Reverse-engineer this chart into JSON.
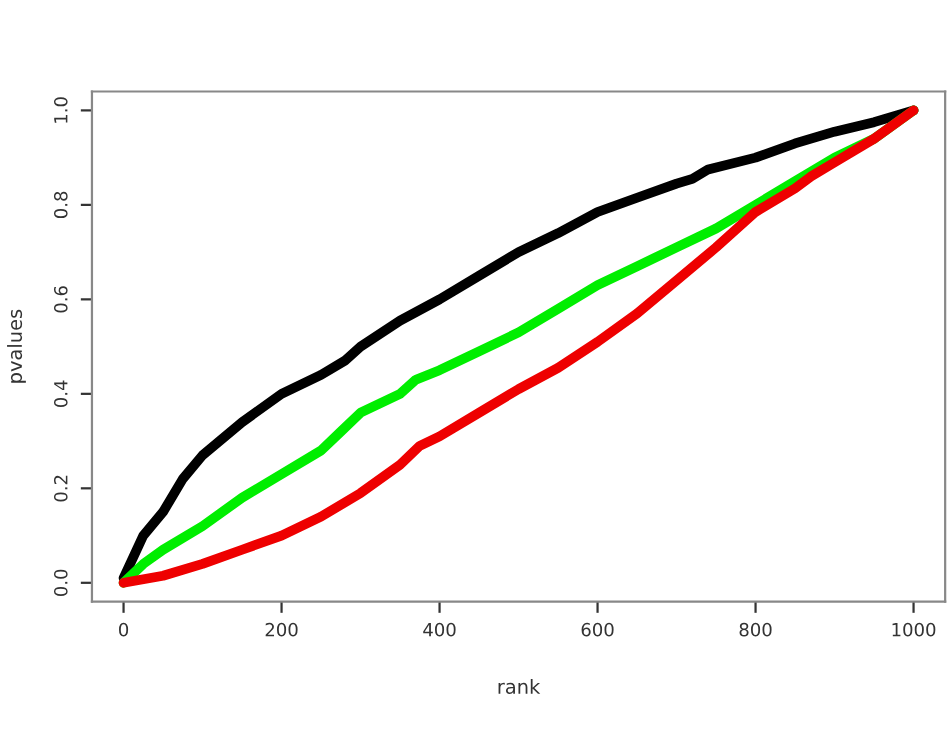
{
  "chart_data": {
    "type": "line",
    "xlabel": "rank",
    "ylabel": "pvalues",
    "xlim": [
      -40,
      1040
    ],
    "ylim": [
      -0.04,
      1.04
    ],
    "xticks": [
      0,
      200,
      400,
      600,
      800,
      1000
    ],
    "yticks": [
      {
        "value": 0,
        "label": "0.0"
      },
      {
        "value": 0.2,
        "label": "0.2"
      },
      {
        "value": 0.4,
        "label": "0.4"
      },
      {
        "value": 0.6,
        "label": "0.6"
      },
      {
        "value": 0.8,
        "label": "0.8"
      },
      {
        "value": 1,
        "label": "1.0"
      }
    ],
    "grid": false,
    "line_style": "solid",
    "series": [
      {
        "color": "#000000",
        "x": [
          0,
          25,
          50,
          75,
          100,
          150,
          200,
          250,
          280,
          300,
          350,
          400,
          450,
          500,
          550,
          600,
          650,
          700,
          720,
          740,
          800,
          850,
          900,
          950,
          1000
        ],
        "values": [
          0.01,
          0.1,
          0.15,
          0.22,
          0.27,
          0.34,
          0.4,
          0.44,
          0.47,
          0.5,
          0.555,
          0.6,
          0.65,
          0.7,
          0.74,
          0.785,
          0.815,
          0.845,
          0.855,
          0.875,
          0.9,
          0.93,
          0.955,
          0.975,
          1.0
        ]
      },
      {
        "color": "#00ee00",
        "x": [
          0,
          25,
          50,
          100,
          150,
          200,
          250,
          275,
          300,
          350,
          370,
          400,
          450,
          500,
          550,
          600,
          650,
          700,
          750,
          800,
          850,
          900,
          950,
          1000
        ],
        "values": [
          0,
          0.04,
          0.07,
          0.12,
          0.18,
          0.23,
          0.28,
          0.32,
          0.36,
          0.4,
          0.43,
          0.45,
          0.49,
          0.53,
          0.58,
          0.63,
          0.67,
          0.71,
          0.75,
          0.8,
          0.85,
          0.9,
          0.94,
          1.0
        ]
      },
      {
        "color": "#ee0000",
        "x": [
          0,
          50,
          100,
          150,
          200,
          250,
          300,
          350,
          375,
          400,
          450,
          500,
          550,
          600,
          650,
          700,
          750,
          800,
          850,
          870,
          900,
          950,
          1000
        ],
        "values": [
          0,
          0.015,
          0.04,
          0.07,
          0.1,
          0.14,
          0.19,
          0.25,
          0.29,
          0.31,
          0.36,
          0.41,
          0.455,
          0.51,
          0.57,
          0.64,
          0.71,
          0.785,
          0.835,
          0.86,
          0.89,
          0.94,
          1.0
        ]
      }
    ]
  }
}
